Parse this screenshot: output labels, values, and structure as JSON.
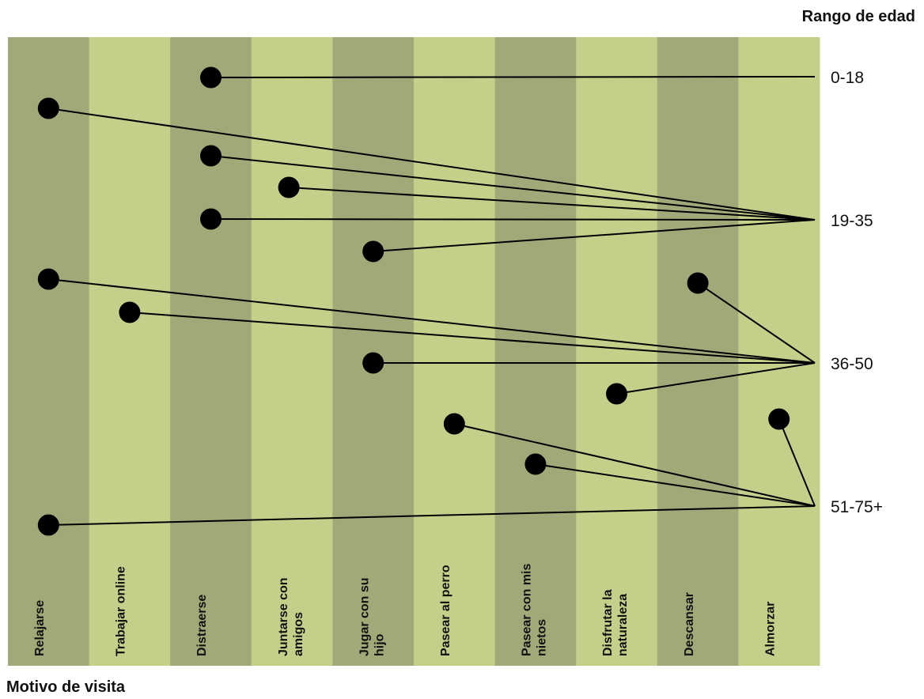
{
  "chart_data": {
    "type": "scatter",
    "xlabel": "Motivo de visita",
    "ylabel": "Rango de edad",
    "categories": [
      "Relajarse",
      "Trabajar online",
      "Distraerse",
      "Juntarse con amigos",
      "Jugar con su hijo",
      "Pasear al perro",
      "Pasear con mis nietos",
      "Disfrutar la naturaleza",
      "Descansar",
      "Almorzar"
    ],
    "category_lines": [
      [
        "Relajarse"
      ],
      [
        "Trabajar online"
      ],
      [
        "Distraerse"
      ],
      [
        "Juntarse con",
        "amigos"
      ],
      [
        "Jugar con su",
        "hijo"
      ],
      [
        "Pasear al perro"
      ],
      [
        "Pasear con mis",
        "nietos"
      ],
      [
        "Disfrutar la",
        "naturaleza"
      ],
      [
        "Descansar"
      ],
      [
        "Almorzar"
      ]
    ],
    "age_groups": [
      "0-18",
      "19-35",
      "36-50",
      "51-75+"
    ],
    "points": [
      {
        "motivo": "Distraerse",
        "edad": "0-18"
      },
      {
        "motivo": "Relajarse",
        "edad": "19-35"
      },
      {
        "motivo": "Distraerse",
        "edad": "19-35"
      },
      {
        "motivo": "Juntarse con amigos",
        "edad": "19-35"
      },
      {
        "motivo": "Distraerse",
        "edad": "19-35"
      },
      {
        "motivo": "Jugar con su hijo",
        "edad": "19-35"
      },
      {
        "motivo": "Relajarse",
        "edad": "36-50"
      },
      {
        "motivo": "Trabajar online",
        "edad": "36-50"
      },
      {
        "motivo": "Jugar con su hijo",
        "edad": "36-50"
      },
      {
        "motivo": "Descansar",
        "edad": "36-50"
      },
      {
        "motivo": "Disfrutar la naturaleza",
        "edad": "36-50"
      },
      {
        "motivo": "Pasear al perro",
        "edad": "51-75+"
      },
      {
        "motivo": "Pasear con mis nietos",
        "edad": "51-75+"
      },
      {
        "motivo": "Almorzar",
        "edad": "51-75+"
      },
      {
        "motivo": "Relajarse",
        "edad": "51-75+"
      }
    ],
    "colors": {
      "dark_column": "#a2a877",
      "light_column": "#c6cf8a",
      "point": "#000000",
      "line": "#000000"
    }
  }
}
